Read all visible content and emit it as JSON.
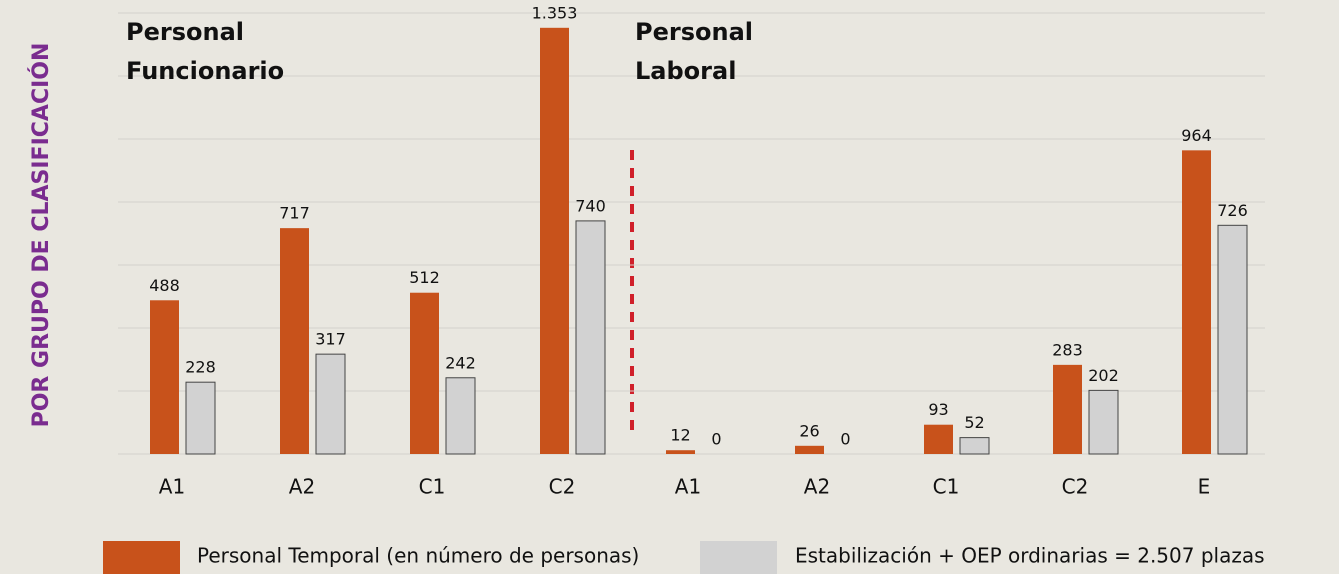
{
  "chart_data": {
    "type": "bar",
    "side_label": "POR GRUPO DE CLASIFICACIÓN",
    "group_labels": [
      "Personal Funcionario",
      "Personal Laboral"
    ],
    "categories": [
      "A1",
      "A2",
      "C1",
      "C2",
      "A1",
      "A2",
      "C1",
      "C2",
      "E"
    ],
    "series": [
      {
        "name": "Personal Temporal (en número de personas)",
        "color": "#c8521b",
        "values": [
          488,
          717,
          512,
          1353,
          12,
          26,
          93,
          283,
          964
        ],
        "value_labels": [
          "488",
          "717",
          "512",
          "1.353",
          "12",
          "26",
          "93",
          "283",
          "964"
        ]
      },
      {
        "name": "Estabilización + OEP ordinarias = 2.507 plazas",
        "color": "#d2d2d2",
        "values": [
          228,
          317,
          242,
          740,
          0,
          0,
          52,
          202,
          726
        ]
      }
    ],
    "ylim": [
      0,
      1400
    ],
    "yticks": [
      0,
      200,
      400,
      600,
      800,
      1000,
      1200,
      1400
    ],
    "grid": true
  }
}
